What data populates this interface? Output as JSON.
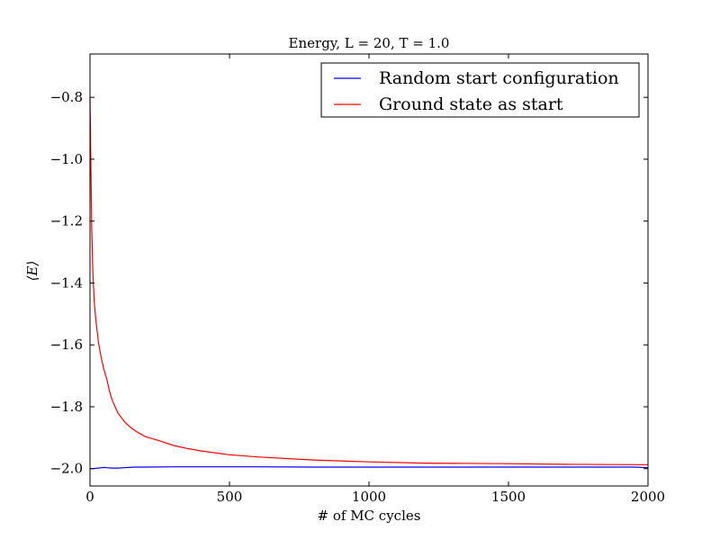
{
  "chart_data": {
    "type": "line",
    "title": "Energy, L = 20, T = 1.0",
    "xlabel": "# of MC cycles",
    "ylabel": "⟨E⟩",
    "xlim": [
      0,
      2000
    ],
    "ylim": [
      -2.056,
      -0.66
    ],
    "xticks": [
      0,
      500,
      1000,
      1500,
      2000
    ],
    "xtick_labels": [
      "0",
      "500",
      "1000",
      "1500",
      "2000"
    ],
    "yticks": [
      -0.8,
      -1.0,
      -1.2,
      -1.4,
      -1.6,
      -1.8,
      -2.0
    ],
    "ytick_labels": [
      "−0.8",
      "−1.0",
      "−1.2",
      "−1.4",
      "−1.6",
      "−1.8",
      "−2.0"
    ],
    "grid": false,
    "legend_position": "top-right",
    "series": [
      {
        "name": "Random start configuration",
        "color": "#0000ff",
        "x": [
          0,
          10,
          20,
          30,
          40,
          50,
          60,
          80,
          100,
          120,
          140,
          160,
          200,
          300,
          400,
          500,
          600,
          800,
          1000,
          1200,
          1500,
          1800,
          1950,
          2000
        ],
        "y": [
          -2.0,
          -2.0,
          -1.999,
          -1.998,
          -1.997,
          -1.996,
          -1.997,
          -1.998,
          -1.998,
          -1.997,
          -1.996,
          -1.995,
          -1.995,
          -1.994,
          -1.994,
          -1.994,
          -1.994,
          -1.995,
          -1.995,
          -1.995,
          -1.995,
          -1.995,
          -1.995,
          -1.997
        ]
      },
      {
        "name": "Ground state as start",
        "color": "#ff0000",
        "x": [
          0,
          3,
          6,
          10,
          15,
          20,
          30,
          40,
          50,
          60,
          70,
          80,
          90,
          100,
          125,
          150,
          175,
          200,
          250,
          300,
          350,
          400,
          500,
          600,
          800,
          1000,
          1200,
          1500,
          1700,
          2000
        ],
        "y": [
          -0.8,
          -1.0,
          -1.22,
          -1.36,
          -1.46,
          -1.51,
          -1.59,
          -1.64,
          -1.68,
          -1.71,
          -1.75,
          -1.78,
          -1.8,
          -1.82,
          -1.85,
          -1.87,
          -1.885,
          -1.897,
          -1.91,
          -1.925,
          -1.935,
          -1.943,
          -1.955,
          -1.962,
          -1.972,
          -1.978,
          -1.982,
          -1.984,
          -1.986,
          -1.987
        ]
      }
    ]
  }
}
